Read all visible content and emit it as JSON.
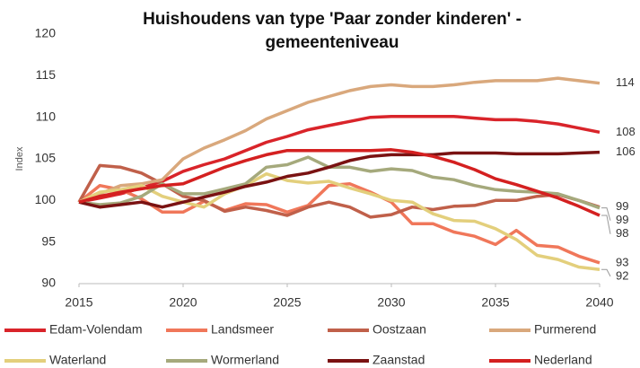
{
  "chart_data": {
    "type": "line",
    "title": [
      "Huishoudens van type 'Paar zonder kinderen' -",
      "gemeenteniveau"
    ],
    "y_label": "Index",
    "x": [
      2015,
      2016,
      2017,
      2018,
      2019,
      2020,
      2021,
      2022,
      2023,
      2024,
      2025,
      2026,
      2027,
      2028,
      2029,
      2030,
      2031,
      2032,
      2033,
      2034,
      2035,
      2036,
      2037,
      2038,
      2039,
      2040
    ],
    "xlim": [
      2015,
      2040
    ],
    "xticks": [
      2015,
      2020,
      2025,
      2030,
      2035,
      2040
    ],
    "ylim": [
      90,
      120
    ],
    "yticks": [
      90,
      95,
      100,
      105,
      110,
      115,
      120
    ],
    "grid": false,
    "series": [
      {
        "name": "Edam-Volendam",
        "color": "#d9242a",
        "values": [
          99.8,
          100.3,
          100.8,
          101.5,
          102.3,
          103.5,
          104.3,
          105,
          106,
          107,
          107.7,
          108.5,
          109,
          109.5,
          110,
          110.1,
          110.1,
          110.1,
          110.1,
          109.9,
          109.7,
          109.7,
          109.5,
          109.2,
          108.7,
          108.2
        ],
        "value_labels": [
          null,
          null,
          null,
          null,
          null,
          null,
          null,
          null,
          null,
          null,
          null,
          null,
          null,
          null,
          null,
          null,
          null,
          null,
          null,
          null,
          null,
          null,
          null,
          null,
          null,
          "108"
        ]
      },
      {
        "name": "Landsmeer",
        "color": "#f0775a",
        "values": [
          99.8,
          101.8,
          101.3,
          100.2,
          98.6,
          98.6,
          99.9,
          98.8,
          99.6,
          99.5,
          98.6,
          99.4,
          101.8,
          102,
          101,
          99.8,
          97.2,
          97.2,
          96.2,
          95.7,
          94.7,
          96.4,
          94.6,
          94.4,
          93.3,
          92.5
        ],
        "value_labels": [
          null,
          null,
          null,
          null,
          null,
          null,
          null,
          null,
          null,
          null,
          null,
          null,
          null,
          null,
          null,
          null,
          null,
          null,
          null,
          null,
          null,
          null,
          null,
          null,
          null,
          "93"
        ]
      },
      {
        "name": "Oostzaan",
        "color": "#c0604a",
        "values": [
          99.8,
          104.2,
          104,
          103.3,
          102,
          100.5,
          100,
          98.7,
          99.2,
          98.8,
          98.2,
          99.2,
          99.8,
          99.2,
          98,
          98.3,
          99.2,
          98.9,
          99.3,
          99.4,
          100,
          100,
          100.5,
          100.7,
          100,
          99.2
        ],
        "value_labels": [
          null,
          null,
          null,
          null,
          null,
          null,
          null,
          null,
          null,
          null,
          null,
          null,
          null,
          null,
          null,
          null,
          null,
          null,
          null,
          null,
          null,
          null,
          null,
          null,
          null,
          "99"
        ]
      },
      {
        "name": "Purmerend",
        "color": "#d9a87c",
        "values": [
          99.8,
          100.8,
          101.8,
          102,
          102.5,
          105,
          106.3,
          107.3,
          108.4,
          109.8,
          110.8,
          111.8,
          112.5,
          113.2,
          113.7,
          113.9,
          113.7,
          113.7,
          113.9,
          114.2,
          114.4,
          114.4,
          114.4,
          114.7,
          114.4,
          114.1
        ],
        "value_labels": [
          null,
          null,
          null,
          null,
          null,
          null,
          null,
          null,
          null,
          null,
          null,
          null,
          null,
          null,
          null,
          null,
          null,
          null,
          null,
          null,
          null,
          null,
          null,
          null,
          null,
          "114"
        ]
      },
      {
        "name": "Waterland",
        "color": "#e3cf7c",
        "values": [
          99.8,
          101,
          101.3,
          101.8,
          100.5,
          99.8,
          99.2,
          100.8,
          101.8,
          103.2,
          102.4,
          102.1,
          102.3,
          101.5,
          100.8,
          100,
          99.8,
          98.4,
          97.6,
          97.5,
          96.6,
          95.3,
          93.4,
          92.9,
          92,
          91.7
        ],
        "value_labels": [
          null,
          null,
          null,
          null,
          null,
          null,
          null,
          null,
          null,
          null,
          null,
          null,
          null,
          null,
          null,
          null,
          null,
          null,
          null,
          null,
          null,
          null,
          null,
          null,
          null,
          "92"
        ]
      },
      {
        "name": "Wormerland",
        "color": "#a5a97c",
        "values": [
          99.8,
          99.5,
          99.7,
          100.5,
          102,
          100.8,
          100.8,
          101.4,
          102,
          104,
          104.3,
          105.2,
          104,
          104,
          103.5,
          103.8,
          103.6,
          102.8,
          102.5,
          101.8,
          101.3,
          101.1,
          101,
          100.8,
          100,
          99.1
        ],
        "value_labels": [
          null,
          null,
          null,
          null,
          null,
          null,
          null,
          null,
          null,
          null,
          null,
          null,
          null,
          null,
          null,
          null,
          null,
          null,
          null,
          null,
          null,
          null,
          null,
          null,
          null,
          "99"
        ]
      },
      {
        "name": "Zaanstad",
        "color": "#7a1212",
        "values": [
          99.8,
          99.2,
          99.5,
          99.8,
          99.2,
          99.8,
          100.4,
          101,
          101.7,
          102.2,
          102.9,
          103.3,
          104,
          104.8,
          105.3,
          105.5,
          105.5,
          105.5,
          105.7,
          105.7,
          105.7,
          105.6,
          105.6,
          105.6,
          105.7,
          105.8
        ],
        "value_labels": [
          null,
          null,
          null,
          null,
          null,
          null,
          null,
          null,
          null,
          null,
          null,
          null,
          null,
          null,
          null,
          null,
          null,
          null,
          null,
          null,
          null,
          null,
          null,
          null,
          null,
          "106"
        ]
      },
      {
        "name": "Nederland",
        "color": "#d42020",
        "values": [
          99.8,
          100.5,
          101,
          101.4,
          101.8,
          102,
          103,
          104,
          104.8,
          105.5,
          106,
          106,
          106,
          106,
          106,
          106.1,
          105.8,
          105.3,
          104.6,
          103.7,
          102.6,
          101.9,
          101.1,
          100.3,
          99.3,
          98.2
        ],
        "value_labels": [
          null,
          null,
          null,
          null,
          null,
          null,
          null,
          null,
          null,
          null,
          null,
          null,
          null,
          null,
          null,
          null,
          null,
          null,
          null,
          null,
          null,
          null,
          null,
          null,
          null,
          "98"
        ]
      }
    ]
  }
}
